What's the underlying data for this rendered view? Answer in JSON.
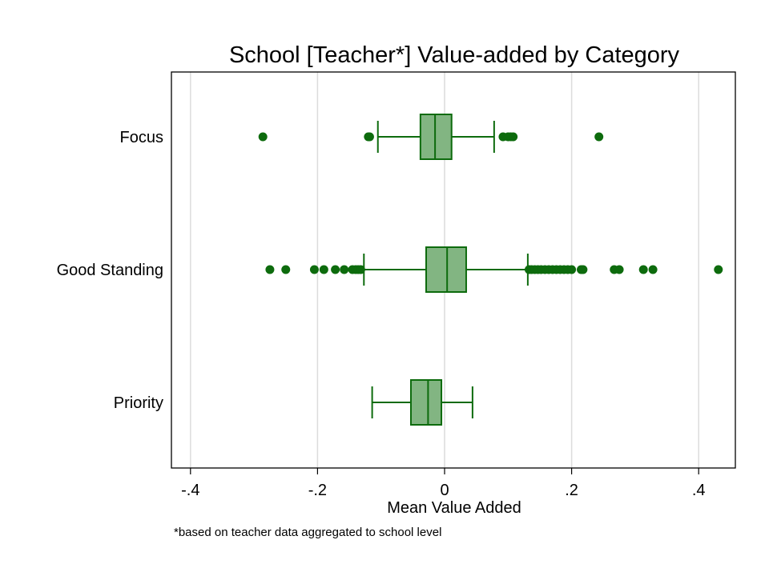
{
  "chart_data": {
    "type": "box",
    "orientation": "horizontal",
    "title": "School [Teacher*] Value-added by Category",
    "xlabel": "Mean Value Added",
    "ylabel": "",
    "note": "*based on teacher data aggregated to school level",
    "xlim": [
      -0.43,
      0.46
    ],
    "x_ticks": [
      -0.4,
      -0.2,
      0,
      0.2,
      0.4
    ],
    "x_tick_labels": [
      "-.4",
      "-.2",
      "0",
      ".2",
      ".4"
    ],
    "grid": "vertical",
    "colors": {
      "stroke": "#0d6b0d",
      "fill": "#82b582",
      "grid": "#dcdcdc",
      "frame": "#000000"
    },
    "categories": [
      "Focus",
      "Good Standing",
      "Priority"
    ],
    "boxes": [
      {
        "category": "Focus",
        "whisker_low": -0.105,
        "q1": -0.038,
        "median": -0.015,
        "q3": 0.011,
        "whisker_high": 0.078,
        "outliers": [
          -0.286,
          -0.12,
          -0.118,
          0.092,
          0.1,
          0.104,
          0.108,
          0.243
        ]
      },
      {
        "category": "Good Standing",
        "whisker_low": -0.127,
        "q1": -0.029,
        "median": 0.004,
        "q3": 0.034,
        "whisker_high": 0.131,
        "outliers": [
          -0.275,
          -0.25,
          -0.205,
          -0.19,
          -0.172,
          -0.158,
          -0.145,
          -0.14,
          -0.136,
          -0.132,
          0.133,
          0.137,
          0.142,
          0.147,
          0.152,
          0.158,
          0.164,
          0.17,
          0.176,
          0.182,
          0.188,
          0.194,
          0.2,
          0.215,
          0.218,
          0.267,
          0.275,
          0.313,
          0.328,
          0.431
        ]
      },
      {
        "category": "Priority",
        "whisker_low": -0.114,
        "q1": -0.053,
        "median": -0.026,
        "q3": -0.005,
        "whisker_high": 0.044,
        "outliers": []
      }
    ]
  }
}
